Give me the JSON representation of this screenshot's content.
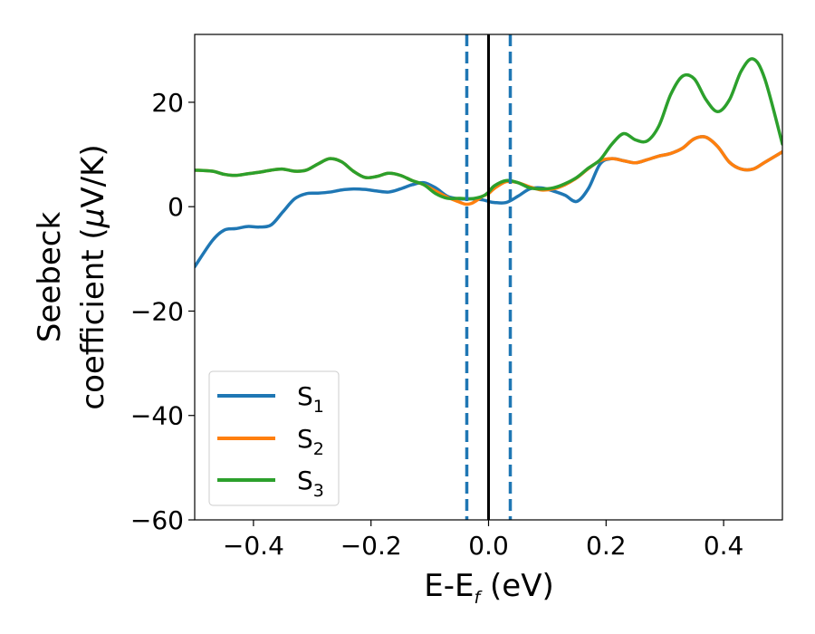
{
  "chart_data": {
    "type": "line",
    "xlabel_main": "E-E",
    "xlabel_sub": "f",
    "xlabel_unit": " (eV)",
    "ylabel_line1": "Seebeck",
    "ylabel_line2_text": "coefficient  (",
    "ylabel_mu": "μ",
    "ylabel_line2_unit": "V/K)",
    "xlim": [
      -0.5,
      0.5
    ],
    "ylim": [
      -60,
      33
    ],
    "xticks": [
      -0.4,
      -0.2,
      0.0,
      0.2,
      0.4
    ],
    "xtick_labels": [
      "−0.4",
      "−0.2",
      "0.0",
      "0.2",
      "0.4"
    ],
    "yticks": [
      -60,
      -40,
      -20,
      0,
      20
    ],
    "ytick_labels": [
      "−60",
      "−40",
      "−20",
      "0",
      "20"
    ],
    "grid": false,
    "legend_position": "lower-left",
    "vertical_lines": [
      {
        "x": -0.037,
        "style": "dashed",
        "color": "#1f77b4"
      },
      {
        "x": 0.0,
        "style": "solid",
        "color": "#000000"
      },
      {
        "x": 0.037,
        "style": "dashed",
        "color": "#1f77b4"
      }
    ],
    "series": [
      {
        "name_main": "S",
        "name_sub": "1",
        "color": "#1f77b4",
        "x": [
          -0.5,
          -0.47,
          -0.45,
          -0.43,
          -0.41,
          -0.39,
          -0.37,
          -0.35,
          -0.33,
          -0.31,
          -0.29,
          -0.27,
          -0.25,
          -0.23,
          -0.21,
          -0.19,
          -0.17,
          -0.15,
          -0.13,
          -0.11,
          -0.09,
          -0.07,
          -0.05,
          -0.03,
          -0.01,
          0.0,
          0.01,
          0.03,
          0.05,
          0.07,
          0.09,
          0.11,
          0.13,
          0.15,
          0.17,
          0.19,
          0.21,
          0.23,
          0.25,
          0.27,
          0.29,
          0.31,
          0.33,
          0.35,
          0.37,
          0.39,
          0.41,
          0.43,
          0.45,
          0.47,
          0.5
        ],
        "values": [
          -11.5,
          -6.5,
          -4.5,
          -4.2,
          -3.8,
          -3.9,
          -3.5,
          -1.0,
          1.5,
          2.5,
          2.6,
          2.8,
          3.2,
          3.4,
          3.3,
          3.0,
          2.8,
          3.4,
          4.2,
          4.6,
          3.6,
          2.0,
          1.5,
          1.5,
          1.3,
          1.0,
          0.8,
          0.8,
          2.0,
          3.4,
          3.6,
          3.0,
          2.2,
          1.0,
          3.5,
          8.2,
          9.2,
          8.8,
          8.4,
          9.0,
          9.7,
          10.2,
          11.2,
          13.0,
          13.3,
          11.5,
          8.5,
          7.2,
          7.2,
          8.5,
          10.5
        ]
      },
      {
        "name_main": "S",
        "name_sub": "2",
        "color": "#ff7f0e",
        "x": [
          -0.5,
          -0.47,
          -0.45,
          -0.43,
          -0.41,
          -0.39,
          -0.37,
          -0.35,
          -0.33,
          -0.31,
          -0.29,
          -0.27,
          -0.25,
          -0.23,
          -0.21,
          -0.19,
          -0.17,
          -0.15,
          -0.13,
          -0.11,
          -0.09,
          -0.07,
          -0.05,
          -0.04,
          -0.03,
          -0.02,
          -0.01,
          0.0,
          0.01,
          0.03,
          0.05,
          0.07,
          0.09,
          0.11,
          0.13,
          0.15,
          0.17,
          0.19,
          0.21,
          0.23,
          0.25,
          0.27,
          0.29,
          0.31,
          0.33,
          0.35,
          0.37,
          0.39,
          0.41,
          0.43,
          0.45,
          0.47,
          0.5
        ],
        "values": [
          7.0,
          6.8,
          6.2,
          6.0,
          6.3,
          6.6,
          7.0,
          7.2,
          6.8,
          7.0,
          8.2,
          9.2,
          8.6,
          6.8,
          5.6,
          5.8,
          6.4,
          6.0,
          5.0,
          4.2,
          3.0,
          1.8,
          0.9,
          0.5,
          0.6,
          1.2,
          2.0,
          2.5,
          3.5,
          4.8,
          4.6,
          3.8,
          3.2,
          3.4,
          4.2,
          5.5,
          7.3,
          8.8,
          9.2,
          8.8,
          8.4,
          9.0,
          9.7,
          10.2,
          11.2,
          13.0,
          13.3,
          11.5,
          8.5,
          7.2,
          7.2,
          8.5,
          10.5
        ]
      },
      {
        "name_main": "S",
        "name_sub": "3",
        "color": "#2ca02c",
        "x": [
          -0.5,
          -0.47,
          -0.45,
          -0.43,
          -0.41,
          -0.39,
          -0.37,
          -0.35,
          -0.33,
          -0.31,
          -0.29,
          -0.27,
          -0.25,
          -0.23,
          -0.21,
          -0.19,
          -0.17,
          -0.15,
          -0.13,
          -0.11,
          -0.09,
          -0.07,
          -0.05,
          -0.03,
          -0.01,
          0.0,
          0.01,
          0.03,
          0.05,
          0.07,
          0.09,
          0.11,
          0.13,
          0.15,
          0.17,
          0.19,
          0.21,
          0.23,
          0.25,
          0.27,
          0.29,
          0.31,
          0.33,
          0.35,
          0.37,
          0.39,
          0.41,
          0.43,
          0.45,
          0.47,
          0.5
        ],
        "values": [
          7.0,
          6.8,
          6.2,
          6.0,
          6.3,
          6.6,
          7.0,
          7.2,
          6.8,
          7.0,
          8.2,
          9.2,
          8.6,
          6.8,
          5.6,
          5.8,
          6.4,
          6.0,
          5.0,
          4.2,
          2.5,
          1.6,
          1.6,
          1.5,
          2.0,
          2.8,
          4.0,
          5.0,
          4.6,
          3.6,
          3.4,
          3.6,
          4.4,
          5.6,
          7.4,
          9.0,
          12.0,
          14.0,
          12.8,
          12.6,
          15.5,
          21.5,
          25.0,
          24.5,
          20.5,
          18.2,
          20.5,
          26.0,
          28.3,
          24.5,
          12.0
        ]
      }
    ]
  }
}
